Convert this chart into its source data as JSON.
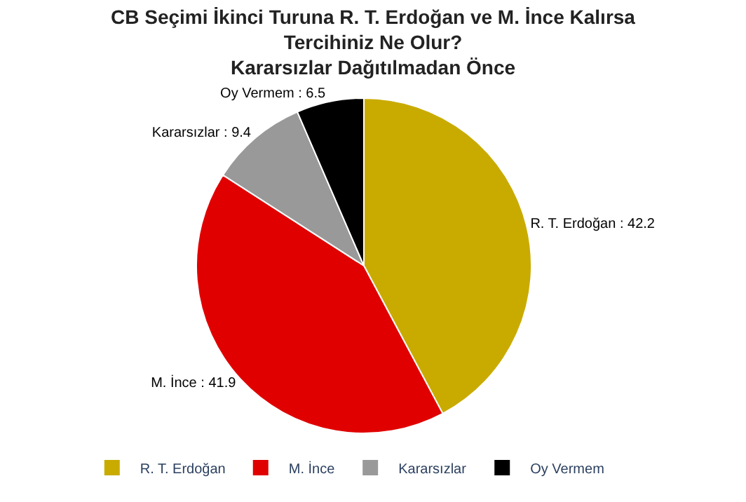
{
  "chart_data": {
    "type": "pie",
    "title": "CB Seçimi İkinci Turuna R. T. Erdoğan ve M. İnce Kalırsa Tercihiniz Ne Olur?",
    "subtitle": "Kararsızlar Dağıtılmadan Önce",
    "categories": [
      "R. T. Erdoğan",
      "M. İnce",
      "Kararsızlar",
      "Oy Vermem"
    ],
    "values": [
      42.2,
      41.9,
      9.4,
      6.5
    ],
    "colors": [
      "#c9ab00",
      "#e00000",
      "#999999",
      "#000000"
    ],
    "value_labels": [
      ": 42.2",
      ": 41.9",
      ": 9.4",
      ": 6.5"
    ],
    "legend": "bottom"
  }
}
